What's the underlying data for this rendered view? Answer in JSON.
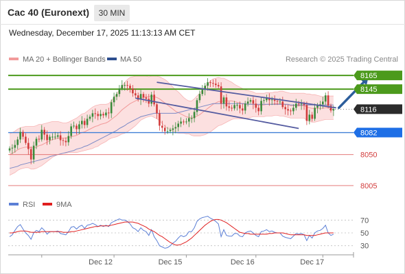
{
  "header": {
    "title": "Cac 40 (Euronext)",
    "timeframe": "30 MIN",
    "timestamp": "Wednesday, December 17, 2025 11:13:13 AM CET"
  },
  "legend": {
    "ma20_label": "MA 20 + Bollinger Bands",
    "ma50_label": "MA 50",
    "credit": "Research © 2025 Trading Central"
  },
  "colors": {
    "resistance": "#4c9a1c",
    "support_line": "#3f7fd6",
    "support_label": "#1e6fe6",
    "current_label": "#2b2b2b",
    "pivot_red": "#e06666",
    "candle_up": "#3a8a3a",
    "candle_down": "#d23c3c",
    "ma20": "#f29a9a",
    "ma50": "#7a89c6",
    "bollinger_fill": "#fbd6d6",
    "channel": "#545ba0",
    "arrow": "#2d5e9c",
    "rsi": "#5b7fd6",
    "rsi_ma": "#e01e1e"
  },
  "chart_data": [
    {
      "type": "candlestick",
      "title": "Cac 40 (Euronext)",
      "interval": "30 MIN",
      "ylim": [
        7998,
        8178
      ],
      "x_labels": [
        "Dec 12",
        "Dec 15",
        "Dec 16",
        "Dec 17"
      ],
      "levels": [
        {
          "value": 8165,
          "label": "8165",
          "kind": "resistance"
        },
        {
          "value": 8145,
          "label": "8145",
          "kind": "resistance"
        },
        {
          "value": 8116,
          "label": "8116",
          "kind": "current"
        },
        {
          "value": 8082,
          "label": "8082",
          "kind": "support"
        },
        {
          "value": 8050,
          "label": "8050",
          "kind": "pivot"
        },
        {
          "value": 8005,
          "label": "8005",
          "kind": "pivot"
        }
      ],
      "closes": [
        8059,
        8060,
        8064,
        8072,
        8083,
        8076,
        8067,
        8058,
        8043,
        8063,
        8073,
        8072,
        8086,
        8079,
        8071,
        8076,
        8076,
        8076,
        8078,
        8071,
        8070,
        8068,
        8077,
        8091,
        8092,
        8087,
        8094,
        8099,
        8093,
        8102,
        8105,
        8110,
        8109,
        8106,
        8109,
        8107,
        8111,
        8110,
        8126,
        8134,
        8138,
        8146,
        8151,
        8151,
        8150,
        8146,
        8139,
        8136,
        8130,
        8138,
        8133,
        8131,
        8124,
        8137,
        8123,
        8110,
        8092,
        8089,
        8084,
        8084,
        8086,
        8088,
        8090,
        8095,
        8098,
        8097,
        8098,
        8103,
        8103,
        8112,
        8129,
        8138,
        8144,
        8150,
        8155,
        8154,
        8153,
        8151,
        8149,
        8124,
        8133,
        8120,
        8118,
        8117,
        8122,
        8122,
        8117,
        8114,
        8124,
        8127,
        8129,
        8124,
        8118,
        8113,
        8128,
        8129,
        8132,
        8129,
        8130,
        8128,
        8127,
        8127,
        8119,
        8116,
        8114,
        8113,
        8118,
        8124,
        8123,
        8124,
        8122,
        8099,
        8108,
        8102,
        8118,
        8122,
        8123,
        8127,
        8136,
        8121,
        8114,
        8116
      ],
      "ma20": [
        8050,
        8052,
        8054,
        8057,
        8059,
        8060,
        8061,
        8061,
        8060,
        8060,
        8061,
        8063,
        8064,
        8066,
        8068,
        8070,
        8072,
        8073,
        8074,
        8074,
        8074,
        8074,
        8075,
        8076,
        8077,
        8078,
        8080,
        8082,
        8083,
        8085,
        8087,
        8089,
        8091,
        8092,
        8094,
        8095,
        8096,
        8098,
        8101,
        8104,
        8107,
        8111,
        8115,
        8118,
        8121,
        8124,
        8126,
        8128,
        8130,
        8132,
        8133,
        8134,
        8134,
        8135,
        8134,
        8133,
        8131,
        8128,
        8125,
        8122,
        8119,
        8116,
        8113,
        8111,
        8109,
        8107,
        8105,
        8104,
        8103,
        8104,
        8106,
        8108,
        8111,
        8114,
        8117,
        8120,
        8123,
        8125,
        8127,
        8127,
        8128,
        8128,
        8128,
        8128,
        8127,
        8126,
        8125,
        8124,
        8123,
        8123,
        8123,
        8123,
        8122,
        8122,
        8122,
        8122,
        8123,
        8123,
        8123,
        8124,
        8124,
        8124,
        8124,
        8123,
        8122,
        8121,
        8121,
        8121,
        8121,
        8121,
        8121,
        8119,
        8118,
        8117,
        8117,
        8117,
        8117,
        8117,
        8118,
        8118,
        8118,
        8118
      ],
      "ma50": [
        8030,
        8031,
        8032,
        8033,
        8035,
        8036,
        8037,
        8038,
        8039,
        8040,
        8041,
        8042,
        8043,
        8044,
        8045,
        8047,
        8048,
        8049,
        8050,
        8051,
        8052,
        8053,
        8054,
        8055,
        8056,
        8058,
        8059,
        8060,
        8062,
        8063,
        8065,
        8067,
        8069,
        8071,
        8073,
        8075,
        8077,
        8079,
        8081,
        8083,
        8085,
        8088,
        8090,
        8092,
        8095,
        8097,
        8099,
        8101,
        8103,
        8105,
        8106,
        8107,
        8108,
        8109,
        8110,
        8110,
        8110,
        8110,
        8110,
        8110,
        8110,
        8110,
        8110,
        8111,
        8112,
        8113,
        8114,
        8115,
        8116,
        8117,
        8118,
        8119,
        8120,
        8121,
        8122,
        8123,
        8124,
        8124,
        8124,
        8124,
        8124,
        8124,
        8124,
        8124,
        8124,
        8124,
        8124,
        8124,
        8124,
        8123,
        8123,
        8123,
        8123,
        8123,
        8123,
        8123,
        8123,
        8123,
        8123,
        8123,
        8123,
        8123,
        8123,
        8123,
        8123,
        8122,
        8122,
        8122,
        8122,
        8122,
        8122,
        8122,
        8122,
        8122,
        8122,
        8122,
        8122,
        8122,
        8122,
        8122,
        8122,
        8122
      ],
      "bollinger_halfwidth": [
        30,
        30,
        30,
        30,
        30,
        30,
        30,
        30,
        31,
        31,
        31,
        31,
        30,
        29,
        28,
        27,
        26,
        25,
        24,
        23,
        22,
        22,
        22,
        23,
        24,
        25,
        26,
        27,
        27,
        28,
        29,
        30,
        30,
        30,
        29,
        28,
        27,
        26,
        27,
        29,
        31,
        33,
        35,
        37,
        38,
        38,
        37,
        36,
        34,
        32,
        31,
        30,
        29,
        29,
        30,
        31,
        32,
        33,
        34,
        34,
        33,
        32,
        31,
        30,
        28,
        26,
        25,
        24,
        25,
        27,
        29,
        31,
        33,
        35,
        36,
        37,
        37,
        36,
        35,
        34,
        33,
        31,
        29,
        27,
        25,
        24,
        23,
        22,
        21,
        20,
        19,
        18,
        17,
        17,
        17,
        17,
        17,
        17,
        17,
        17,
        17,
        18,
        18,
        18,
        18,
        18,
        18,
        18,
        18,
        18,
        18,
        19,
        20,
        20,
        20,
        19,
        18,
        17,
        17,
        17,
        17,
        17
      ],
      "channel": {
        "upper": [
          {
            "x": 55,
            "y": 8155
          },
          {
            "x": 122,
            "y": 8118
          }
        ],
        "lower": [
          {
            "x": 47,
            "y": 8132
          },
          {
            "x": 108,
            "y": 8088
          }
        ]
      },
      "forecast_arrow": {
        "from": {
          "x": 123,
          "y": 8118
        },
        "to": {
          "x": 134,
          "y": 8162
        }
      }
    },
    {
      "type": "line",
      "legend": [
        "RSI",
        "9MA"
      ],
      "ylim": [
        20,
        80
      ],
      "ticks": [
        70,
        50,
        30
      ],
      "series": [
        {
          "name": "RSI",
          "values": [
            44,
            47,
            54,
            60,
            63,
            56,
            50,
            46,
            40,
            50,
            54,
            52,
            58,
            54,
            48,
            52,
            52,
            52,
            53,
            49,
            48,
            47,
            52,
            59,
            60,
            56,
            60,
            62,
            57,
            62,
            63,
            65,
            63,
            60,
            62,
            60,
            62,
            60,
            66,
            68,
            70,
            72,
            70,
            70,
            68,
            64,
            58,
            56,
            52,
            58,
            54,
            52,
            46,
            55,
            44,
            38,
            30,
            28,
            26,
            27,
            30,
            34,
            37,
            42,
            46,
            44,
            46,
            52,
            52,
            58,
            68,
            72,
            74,
            75,
            76,
            73,
            71,
            68,
            64,
            44,
            55,
            46,
            45,
            45,
            49,
            49,
            45,
            44,
            50,
            52,
            53,
            50,
            46,
            44,
            52,
            53,
            55,
            52,
            53,
            51,
            50,
            50,
            45,
            43,
            42,
            41,
            45,
            49,
            48,
            49,
            47,
            38,
            46,
            42,
            50,
            53,
            54,
            57,
            62,
            50,
            46,
            48
          ]
        },
        {
          "name": "9MA",
          "values": [
            50,
            50,
            51,
            52,
            53,
            53,
            53,
            52,
            51,
            51,
            51,
            51,
            52,
            52,
            52,
            52,
            52,
            52,
            52,
            52,
            51,
            51,
            51,
            52,
            52,
            53,
            54,
            55,
            56,
            57,
            58,
            59,
            60,
            60,
            61,
            61,
            61,
            61,
            62,
            63,
            64,
            65,
            66,
            67,
            67,
            67,
            67,
            66,
            65,
            63,
            61,
            59,
            56,
            54,
            52,
            49,
            46,
            44,
            41,
            38,
            35,
            33,
            31,
            31,
            32,
            34,
            36,
            39,
            42,
            46,
            50,
            54,
            58,
            62,
            65,
            68,
            70,
            71,
            71,
            70,
            68,
            66,
            63,
            60,
            57,
            54,
            51,
            50,
            49,
            49,
            48,
            48,
            48,
            48,
            48,
            48,
            48,
            49,
            49,
            50,
            50,
            50,
            50,
            49,
            48,
            47,
            47,
            47,
            47,
            47,
            47,
            46,
            46,
            46,
            46,
            47,
            48,
            49,
            50,
            50,
            50,
            50
          ]
        }
      ]
    }
  ]
}
